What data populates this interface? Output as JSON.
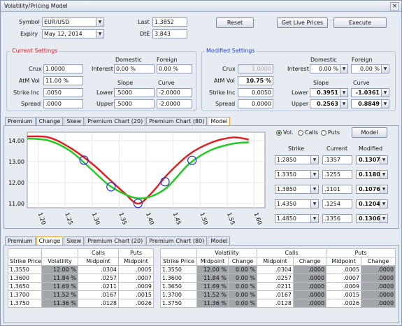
{
  "window": {
    "title": "Volatility/Pricing Model",
    "close_label": "×"
  },
  "top": {
    "symbol_label": "Symbol",
    "symbol_value": "EUR/USD",
    "expiry_label": "Expiry",
    "expiry_value": "May 12, 2014",
    "last_label": "Last",
    "last_value": "1.3852",
    "dte_label": "DtE",
    "dte_value": "3.843",
    "reset_label": "Reset",
    "live_prices_label": "Get Live Prices",
    "execute_label": "Execute"
  },
  "current": {
    "title": "Current Settings",
    "crux_label": "Crux",
    "crux_value": "1.0000",
    "atm_label": "AtM Vol",
    "atm_value": "11.00 %",
    "strike_inc_label": "Strike Inc",
    "strike_inc_value": ".0050",
    "spread_label": "Spread",
    "spread_value": ".0000",
    "domestic_label": "Domestic",
    "foreign_label": "Foreign",
    "interest_label": "Interest",
    "domestic_value": "0.00 %",
    "foreign_value": "0.00 %",
    "slope_label": "Slope",
    "curve_label": "Curve",
    "lower_label": "Lower",
    "lower_slope": ".5000",
    "lower_curve": "-2.0000",
    "upper_label": "Upper",
    "upper_slope": ".5000",
    "upper_curve": "-2.0000"
  },
  "modified": {
    "title": "Modified Settings",
    "crux_label": "Crux",
    "crux_value": "1.0000",
    "atm_label": "AtM Vol",
    "atm_value": "10.75 %",
    "strike_inc_label": "Strike Inc",
    "strike_inc_value": "0.0050",
    "spread_label": "Spread",
    "spread_value": "0.0000",
    "domestic_label": "Domestic",
    "foreign_label": "Foreign",
    "interest_label": "Interest",
    "domestic_value": "0.00 %",
    "foreign_value": "0.00 %",
    "slope_label": "Slope",
    "curve_label": "Curve",
    "lower_label": "Lower",
    "lower_slope": "0.3951",
    "lower_curve": "-1.0361",
    "upper_label": "Upper",
    "upper_slope": "0.2563",
    "upper_curve": "0.8849"
  },
  "tabs_top": [
    "Premium",
    "Change",
    "Skew",
    "Premium Chart (20)",
    "Premium Chart (80)",
    "Model"
  ],
  "tabs_bottom": [
    "Premium",
    "Change",
    "Skew",
    "Premium Chart (20)",
    "Premium Chart (80)",
    "Model"
  ],
  "model_panel": {
    "radio_vol": "Vol.",
    "radio_calls": "Calls",
    "radio_puts": "Puts",
    "model_button": "Model",
    "col_strike": "Strike",
    "col_current": "Current",
    "col_modified": "Modified",
    "rows": [
      {
        "strike": "1.2850",
        "current": ".1357",
        "modified": "0.1307"
      },
      {
        "strike": "1.3350",
        "current": ".1255",
        "modified": "0.1180"
      },
      {
        "strike": "1.3850",
        "current": ".1101",
        "modified": "0.1076"
      },
      {
        "strike": "1.4350",
        "current": ".1254",
        "modified": "0.1204"
      },
      {
        "strike": "1.4850",
        "current": ".1356",
        "modified": "0.1306"
      }
    ]
  },
  "chart_data": {
    "type": "line",
    "title": "",
    "xlabel": "",
    "ylabel": "",
    "xlim": [
      1.18,
      1.62
    ],
    "ylim": [
      10.8,
      14.4
    ],
    "x_ticks": [
      "1.20",
      "1.25",
      "1.30",
      "1.35",
      "1.40",
      "1.45",
      "1.50",
      "1.55",
      "1.60"
    ],
    "y_ticks": [
      "14.00",
      "13.00",
      "12.00",
      "11.00"
    ],
    "grid": true,
    "series": [
      {
        "name": "",
        "color": "#e02020",
        "x": [
          1.18,
          1.22,
          1.26,
          1.3,
          1.33,
          1.36,
          1.385,
          1.41,
          1.44,
          1.48,
          1.52,
          1.56,
          1.59
        ],
        "y": [
          14.2,
          14.15,
          13.65,
          12.9,
          12.2,
          11.5,
          11.0,
          11.5,
          12.4,
          13.35,
          13.9,
          14.15,
          14.05
        ]
      },
      {
        "name": "",
        "color": "#22cc22",
        "x": [
          1.18,
          1.22,
          1.26,
          1.3,
          1.33,
          1.36,
          1.385,
          1.41,
          1.44,
          1.48,
          1.52,
          1.56,
          1.59
        ],
        "y": [
          14.1,
          14.0,
          13.5,
          12.6,
          11.9,
          11.45,
          11.25,
          11.35,
          11.8,
          12.9,
          13.55,
          13.85,
          13.92
        ]
      }
    ],
    "control_points": [
      {
        "x": 1.285,
        "y": 13.07
      },
      {
        "x": 1.335,
        "y": 11.8
      },
      {
        "x": 1.385,
        "y": 11.01
      },
      {
        "x": 1.435,
        "y": 12.04
      },
      {
        "x": 1.485,
        "y": 13.06
      }
    ]
  },
  "left_table": {
    "group_calls": "Calls",
    "group_puts": "Puts",
    "headers": [
      "Strike Price",
      "Volatility",
      "Midpoint",
      "Midpoint"
    ],
    "rows": [
      [
        "1.3550",
        "12.00 %",
        ".0304",
        ".0005"
      ],
      [
        "1.3600",
        "11.84 %",
        ".0257",
        ".0007"
      ],
      [
        "1.3650",
        "11.69 %",
        ".0211",
        ".0009"
      ],
      [
        "1.3700",
        "11.52 %",
        ".0167",
        ".0015"
      ],
      [
        "1.3750",
        "11.36 %",
        ".0128",
        ".0026"
      ]
    ]
  },
  "right_table": {
    "group_vol": "Volatility",
    "group_calls": "Calls",
    "group_puts": "Puts",
    "headers": [
      "Strike Price",
      "Midpoint",
      "Change",
      "Midpoint",
      "Change",
      "Midpoint",
      "Change"
    ],
    "rows": [
      [
        "1.3550",
        "12.00 %",
        "0.00 %",
        ".0304",
        ".0000",
        ".0005",
        ".0000"
      ],
      [
        "1.3600",
        "11.84 %",
        "0.00 %",
        ".0257",
        ".0000",
        ".0007",
        ".0000"
      ],
      [
        "1.3650",
        "11.69 %",
        "0.00 %",
        ".0211",
        ".0000",
        ".0009",
        ".0000"
      ],
      [
        "1.3700",
        "11.52 %",
        "0.00 %",
        ".0167",
        ".0000",
        ".0015",
        ".0000"
      ],
      [
        "1.3750",
        "11.36 %",
        "0.00 %",
        ".0128",
        ".0000",
        ".0026",
        ".0000"
      ]
    ]
  }
}
